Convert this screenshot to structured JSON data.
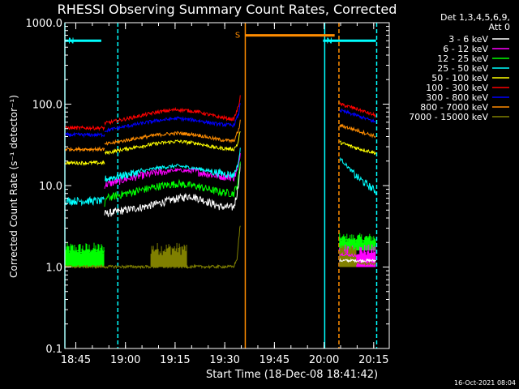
{
  "chart_data": {
    "type": "line",
    "title": "RHESSI Observing Summary Count Rates, Corrected",
    "xlabel": "Start Time (18-Dec-08 18:41:42)",
    "ylabel": "Corrected Count Rate (s⁻¹ detector⁻¹)",
    "x_units": "minutes after 18:41:42",
    "xlim": [
      0,
      98
    ],
    "ylim": [
      0.1,
      1000
    ],
    "yscale": "log",
    "x_ticks": [
      {
        "label": "18:45",
        "x": 3.3
      },
      {
        "label": "19:00",
        "x": 18.3
      },
      {
        "label": "19:15",
        "x": 33.3
      },
      {
        "label": "19:30",
        "x": 48.3
      },
      {
        "label": "19:45",
        "x": 63.3
      },
      {
        "label": "20:00",
        "x": 78.3
      },
      {
        "label": "20:15",
        "x": 93.3
      }
    ],
    "y_ticks": [
      {
        "label": "0.1",
        "y": 0.1
      },
      {
        "label": "1.0",
        "y": 1
      },
      {
        "label": "10.0",
        "y": 10
      },
      {
        "label": "100.0",
        "y": 100
      },
      {
        "label": "1000.0",
        "y": 1000
      }
    ],
    "legend_header": [
      "Det 1,3,4,5,6,9,",
      "Att 0"
    ],
    "series": [
      {
        "name": "3 - 6 keV",
        "color": "#ffffff",
        "segments": [
          [
            [
              12,
              4.5
            ],
            [
              25,
              5.6
            ],
            [
              33,
              6.8
            ],
            [
              38,
              7.5
            ],
            [
              42,
              6.6
            ],
            [
              47,
              5.5
            ],
            [
              51,
              5.4
            ],
            [
              52,
              8
            ],
            [
              52.6,
              12
            ],
            [
              53,
              18
            ]
          ],
          [
            [
              83,
              1.2
            ],
            [
              94,
              1.2
            ]
          ]
        ]
      },
      {
        "name": "6 - 12 keV",
        "color": "#ff00ff",
        "segments": [
          [
            [
              12,
              10.2
            ],
            [
              20,
              12.5
            ],
            [
              28,
              14.5
            ],
            [
              34,
              15.5
            ],
            [
              40,
              14.8
            ],
            [
              46,
              13.2
            ],
            [
              51,
              12.6
            ],
            [
              52.3,
              16
            ],
            [
              53,
              25
            ]
          ],
          [
            [
              83,
              1.45
            ],
            [
              94,
              1.3
            ]
          ]
        ]
      },
      {
        "name": "12 - 25 keV",
        "color": "#00ff00",
        "segments": [
          [
            [
              0,
              1.55
            ],
            [
              12,
              1.55
            ]
          ],
          [
            [
              12,
              5
            ],
            [
              12.3,
              7
            ],
            [
              20,
              8.3
            ],
            [
              28,
              9.8
            ],
            [
              34,
              10.6
            ],
            [
              40,
              9.8
            ],
            [
              46,
              8.5
            ],
            [
              51,
              8
            ],
            [
              52.3,
              11
            ],
            [
              53,
              20
            ]
          ],
          [
            [
              83,
              2.2
            ],
            [
              94,
              2
            ]
          ]
        ]
      },
      {
        "name": "25 - 50 keV",
        "color": "#00ffff",
        "segments": [
          [
            [
              0,
              6.5
            ],
            [
              12,
              6.5
            ]
          ],
          [
            [
              12,
              12
            ],
            [
              20,
              14
            ],
            [
              28,
              16.5
            ],
            [
              34,
              17.5
            ],
            [
              40,
              16.2
            ],
            [
              46,
              14.5
            ],
            [
              51,
              13.5
            ],
            [
              52.3,
              18
            ],
            [
              53,
              28
            ]
          ],
          [
            [
              83,
              22
            ],
            [
              88,
              13
            ],
            [
              94,
              8.5
            ]
          ]
        ]
      },
      {
        "name": "50 - 100 keV",
        "color": "#ffff00",
        "segments": [
          [
            [
              0,
              19
            ],
            [
              12,
              19
            ]
          ],
          [
            [
              12,
              25
            ],
            [
              20,
              29
            ],
            [
              28,
              33
            ],
            [
              34,
              35
            ],
            [
              40,
              33
            ],
            [
              46,
              29
            ],
            [
              51,
              28
            ],
            [
              52.3,
              33
            ],
            [
              53,
              48
            ]
          ],
          [
            [
              83,
              34
            ],
            [
              88,
              29
            ],
            [
              94,
              25
            ]
          ]
        ]
      },
      {
        "name": "100 - 300 keV",
        "color": "#ff0000",
        "segments": [
          [
            [
              0,
              51
            ],
            [
              12,
              51
            ]
          ],
          [
            [
              12,
              58
            ],
            [
              20,
              68
            ],
            [
              28,
              80
            ],
            [
              34,
              86
            ],
            [
              40,
              81
            ],
            [
              46,
              70
            ],
            [
              51,
              65
            ],
            [
              52.5,
              95
            ],
            [
              53,
              130
            ]
          ],
          [
            [
              83,
              100
            ],
            [
              88,
              88
            ],
            [
              94,
              72
            ]
          ]
        ]
      },
      {
        "name": "300 - 800 keV",
        "color": "#0000ff",
        "segments": [
          [
            [
              0,
              42
            ],
            [
              12,
              42
            ]
          ],
          [
            [
              12,
              47
            ],
            [
              20,
              55
            ],
            [
              28,
              63
            ],
            [
              34,
              67
            ],
            [
              40,
              63
            ],
            [
              46,
              57
            ],
            [
              51,
              55
            ],
            [
              52.5,
              75
            ],
            [
              53,
              105
            ]
          ],
          [
            [
              83,
              84
            ],
            [
              88,
              73
            ],
            [
              94,
              60
            ]
          ]
        ]
      },
      {
        "name": "800 - 7000 keV",
        "color": "#ff8c00",
        "segments": [
          [
            [
              0,
              28
            ],
            [
              12,
              28
            ]
          ],
          [
            [
              12,
              32
            ],
            [
              20,
              37
            ],
            [
              28,
              42
            ],
            [
              34,
              44
            ],
            [
              40,
              42
            ],
            [
              46,
              37
            ],
            [
              51,
              35
            ],
            [
              52.5,
              48
            ],
            [
              53,
              62
            ]
          ],
          [
            [
              83,
              55
            ],
            [
              88,
              48
            ],
            [
              94,
              40
            ]
          ]
        ]
      },
      {
        "name": "7000 - 15000 keV",
        "color": "#808000",
        "segments": [
          [
            [
              0,
              1.01
            ],
            [
              51,
              1.01
            ],
            [
              52,
              1.25
            ],
            [
              53,
              3.5
            ]
          ],
          [
            [
              83,
              1.12
            ],
            [
              94,
              1.1
            ]
          ]
        ]
      }
    ],
    "state_bars": [
      {
        "label": "N",
        "color": "#00ffff",
        "x_start": 0,
        "x_end": 11,
        "y": 600
      },
      {
        "label": "N",
        "color": "#00ffff",
        "x_start": 78,
        "x_end": 94,
        "y": 600
      },
      {
        "label": "S",
        "color": "#ff8c00",
        "x_start": 54.6,
        "x_end": 81.5,
        "y": 700
      }
    ],
    "state_lines": [
      {
        "x": 0,
        "color": "#00ffff",
        "dashed": false
      },
      {
        "x": 16,
        "color": "#00ffff",
        "dashed": true
      },
      {
        "x": 54.5,
        "color": "#ff8c00",
        "dashed": false
      },
      {
        "x": 78.5,
        "color": "#00ffff",
        "dashed": false
      },
      {
        "x": 82.8,
        "color": "#ff8c00",
        "dashed": true
      },
      {
        "x": 94.2,
        "color": "#00ffff",
        "dashed": true
      }
    ],
    "noisy_bands": [
      {
        "color": "#00ff00",
        "x_start": 0,
        "x_end": 12,
        "y_low": 1.0,
        "y_high": 2.0
      },
      {
        "color": "#808000",
        "x_start": 26,
        "x_end": 37,
        "y_low": 1.0,
        "y_high": 2.0
      },
      {
        "color": "#00ff00",
        "x_start": 83,
        "x_end": 94,
        "y_low": 1.6,
        "y_high": 2.6
      },
      {
        "color": "#ff00ff",
        "x_start": 83,
        "x_end": 94,
        "y_low": 1.0,
        "y_high": 1.9
      },
      {
        "color": "#808000",
        "x_start": 83,
        "x_end": 88,
        "y_low": 1.0,
        "y_high": 2.0
      }
    ]
  },
  "footer_timestamp": "16-Oct-2021 08:04"
}
